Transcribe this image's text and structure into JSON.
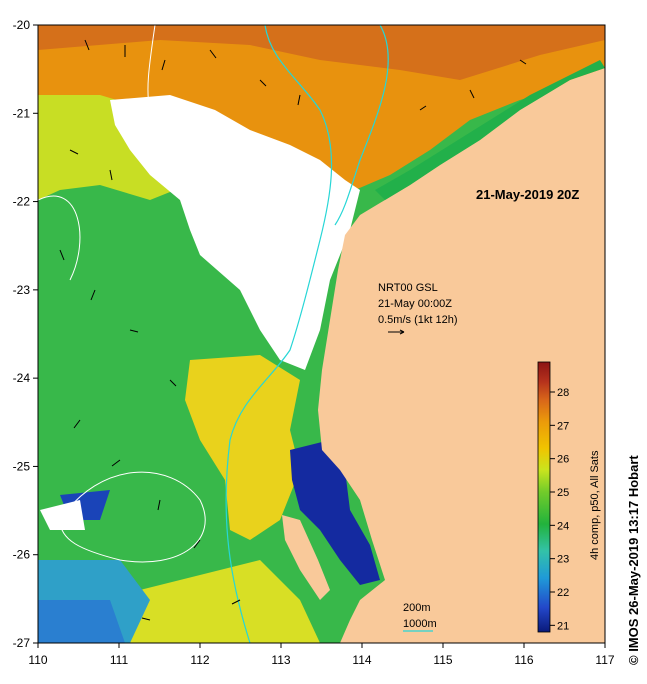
{
  "map": {
    "title": "21-May-2019 20Z",
    "x_ticks": [
      "110",
      "111",
      "112",
      "113",
      "114",
      "115",
      "116",
      "117"
    ],
    "y_ticks": [
      "-20",
      "-21",
      "-22",
      "-23",
      "-24",
      "-25",
      "-26",
      "-27"
    ],
    "lon_range": [
      110,
      117
    ],
    "lat_range": [
      -27,
      -20
    ]
  },
  "legend": {
    "product": "NRT00 GSL",
    "time": "21-May 00:00Z",
    "speed_scale": "0.5m/s (1kt 12h)"
  },
  "contours": {
    "label_200": "200m",
    "label_1000": "1000m",
    "color_200": "#ffffff",
    "color_1000": "#27d6d6"
  },
  "colorbar": {
    "title": "4h comp, p50, All Sats",
    "ticks": [
      "21",
      "22",
      "23",
      "24",
      "25",
      "26",
      "27",
      "28"
    ],
    "range": [
      20.8,
      28.9
    ],
    "colors": [
      "#0a1a7a",
      "#2347c9",
      "#1f9ad8",
      "#33c2a8",
      "#22b33c",
      "#73cc2a",
      "#c9e41e",
      "#f0c400",
      "#eb9a0a",
      "#d8661a",
      "#b4301c",
      "#8c1414"
    ]
  },
  "credit": "© IMOS 26-May-2019 13:17 Hobart",
  "colors": {
    "land": "#f9c99a",
    "no_data": "#ffffff"
  }
}
